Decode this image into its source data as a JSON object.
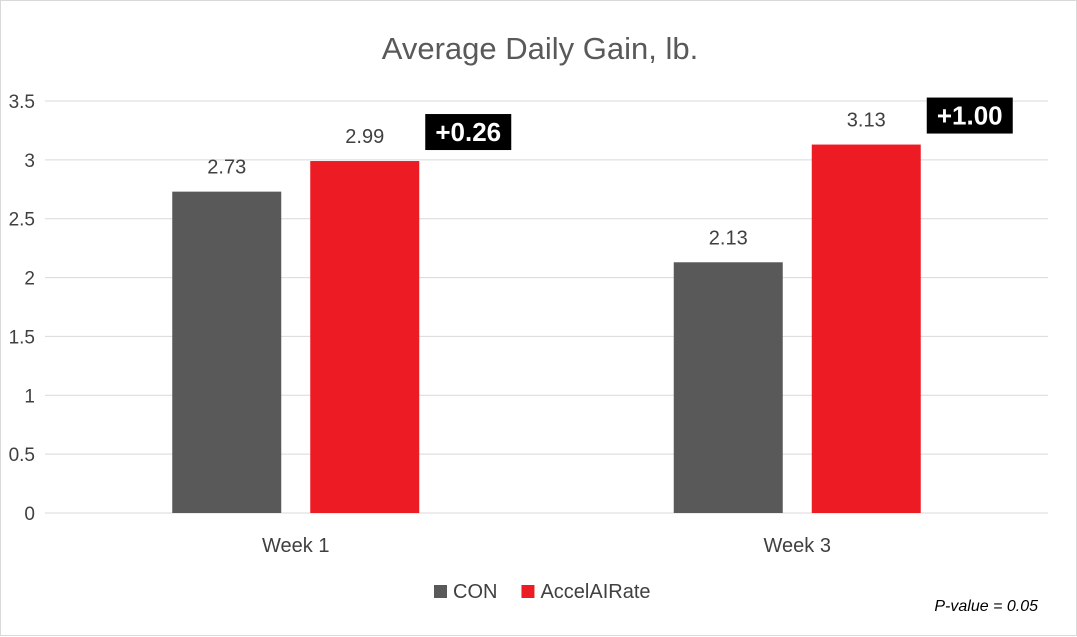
{
  "chart_data": {
    "type": "bar",
    "title": "Average Daily Gain, lb.",
    "categories": [
      "Week 1",
      "Week 3"
    ],
    "series": [
      {
        "name": "CON",
        "color": "#595959",
        "values": [
          2.73,
          2.13
        ],
        "labels": [
          "2.73",
          "2.13"
        ]
      },
      {
        "name": "AccelAIRate",
        "color": "#ed1c24",
        "values": [
          2.99,
          3.13
        ],
        "labels": [
          "2.99",
          "3.13"
        ]
      }
    ],
    "differences": [
      "+0.26",
      "+1.00"
    ],
    "ylim": [
      0,
      3.5
    ],
    "yticks": [
      0,
      0.5,
      1,
      1.5,
      2,
      2.5,
      3,
      3.5
    ],
    "ytick_labels": [
      "0",
      "0.5",
      "1",
      "1.5",
      "2",
      "2.5",
      "3",
      "3.5"
    ],
    "xlabel": "",
    "ylabel": "",
    "grid": true,
    "legend_position": "bottom",
    "annotation": "P-value = 0.05"
  }
}
